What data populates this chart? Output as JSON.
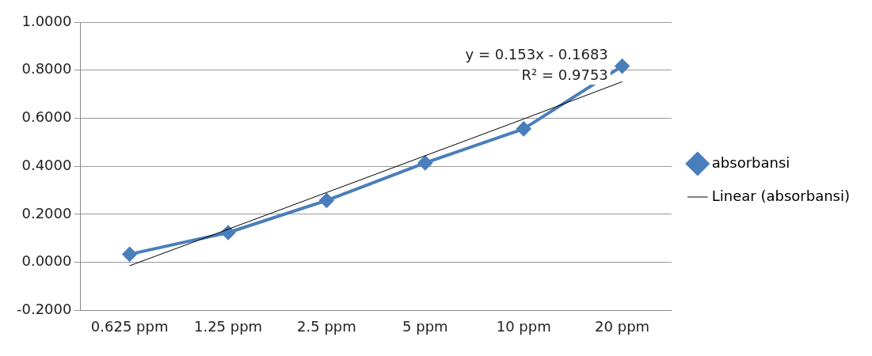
{
  "chart_data": {
    "type": "line",
    "categories": [
      "0.625 ppm",
      "1.25 ppm",
      "2.5 ppm",
      "5 ppm",
      "10 ppm",
      "20 ppm"
    ],
    "series": [
      {
        "name": "absorbansi",
        "color": "#4a7ebb",
        "marker": "diamond",
        "values": [
          0.034,
          0.124,
          0.258,
          0.414,
          0.556,
          0.817
        ]
      },
      {
        "name": "Linear (absorbansi)",
        "type": "line",
        "color": "#000000",
        "marker": "none",
        "values": [
          -0.014,
          0.138,
          0.291,
          0.444,
          0.597,
          0.752
        ]
      }
    ],
    "ylim": [
      -0.2,
      1.0
    ],
    "yticks": [
      {
        "value": -0.2,
        "label": "-0.2000"
      },
      {
        "value": 0,
        "label": "0.0000"
      },
      {
        "value": 0.2,
        "label": "0.2000"
      },
      {
        "value": 0.4,
        "label": "0.4000"
      },
      {
        "value": 0.6,
        "label": "0.6000"
      },
      {
        "value": 0.8,
        "label": "0.8000"
      },
      {
        "value": 1.0,
        "label": "1.0000"
      }
    ],
    "grid": "y",
    "legend": "right",
    "annotations": [
      "y = 0.153x - 0.1683",
      "R² = 0.9753"
    ]
  }
}
